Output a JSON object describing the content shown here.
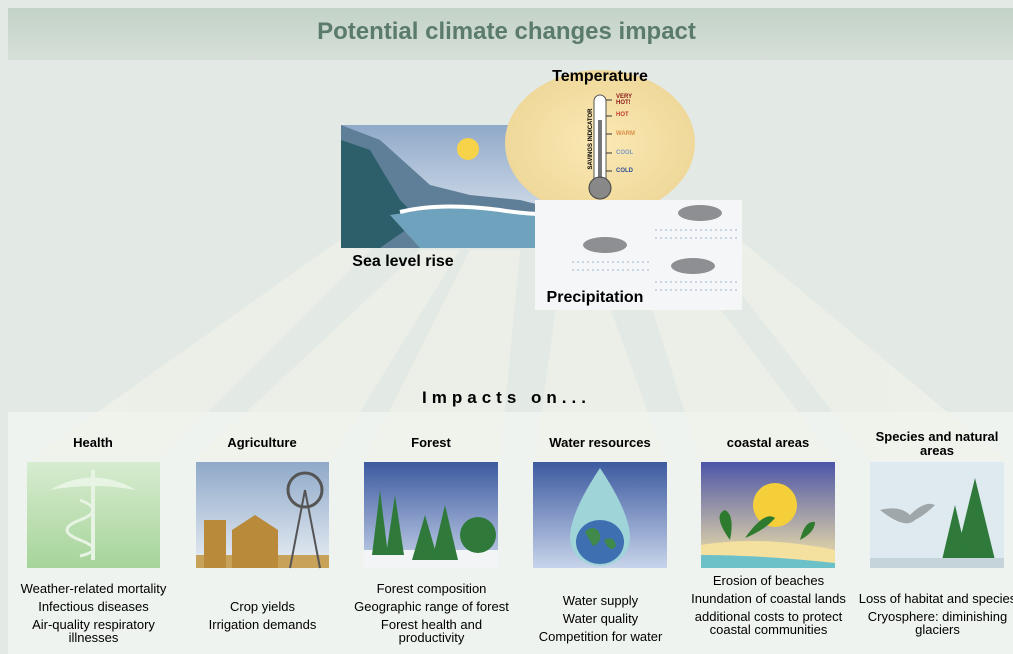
{
  "title": "Potential climate changes impact",
  "top": {
    "temperature": {
      "label": "Temperature",
      "scale": [
        "VERY HOT!",
        "HOT",
        "WARM",
        "COOL",
        "COLD"
      ],
      "indicator": "SAVINGS INDICATOR"
    },
    "sea_level": "Sea level rise",
    "precipitation": "Precipitation"
  },
  "impacts_heading": "Impacts on...",
  "panels": [
    {
      "title": "Health",
      "items": [
        "Weather-related mortality",
        "Infectious diseases",
        "Air-quality respiratory illnesses"
      ]
    },
    {
      "title": "Agriculture",
      "items": [
        "Crop yields",
        "Irrigation demands"
      ]
    },
    {
      "title": "Forest",
      "items": [
        "Forest composition",
        "Geographic range of forest",
        "Forest health and productivity"
      ]
    },
    {
      "title": "Water resources",
      "items": [
        "Water supply",
        "Water quality",
        "Competition for water"
      ]
    },
    {
      "title": "coastal areas",
      "items": [
        "Erosion of beaches",
        "Inundation of coastal lands",
        "additional costs to protect coastal communities"
      ]
    },
    {
      "title": "Species and natural areas",
      "items": [
        "Loss of habitat and species",
        "Cryosphere: diminishing glaciers"
      ]
    }
  ]
}
